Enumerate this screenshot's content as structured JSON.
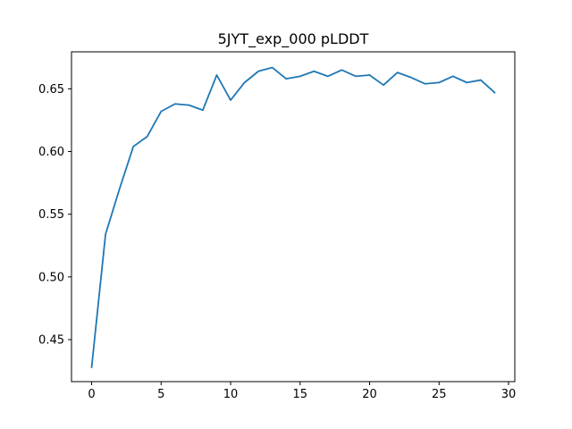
{
  "chart_data": {
    "type": "line",
    "title": "5JYT_exp_000 pLDDT",
    "xlabel": "",
    "ylabel": "",
    "xlim": [
      -1.45,
      30.45
    ],
    "ylim": [
      0.4165,
      0.6795
    ],
    "x_ticks": [
      0,
      5,
      10,
      15,
      20,
      25,
      30
    ],
    "x_tick_labels": [
      "0",
      "5",
      "10",
      "15",
      "20",
      "25",
      "30"
    ],
    "y_ticks": [
      0.45,
      0.5,
      0.55,
      0.6,
      0.65
    ],
    "y_tick_labels": [
      "0.45",
      "0.50",
      "0.55",
      "0.60",
      "0.65"
    ],
    "grid": false,
    "legend": "none",
    "series": [
      {
        "color": "#1f77b4",
        "x": [
          0,
          1,
          2,
          3,
          4,
          5,
          6,
          7,
          8,
          9,
          10,
          11,
          12,
          13,
          14,
          15,
          16,
          17,
          18,
          19,
          20,
          21,
          22,
          23,
          24,
          25,
          26,
          27,
          28,
          29
        ],
        "values": [
          0.428,
          0.534,
          0.57,
          0.604,
          0.612,
          0.632,
          0.638,
          0.637,
          0.633,
          0.661,
          0.641,
          0.655,
          0.664,
          0.667,
          0.658,
          0.66,
          0.664,
          0.66,
          0.665,
          0.66,
          0.661,
          0.653,
          0.663,
          0.659,
          0.654,
          0.655,
          0.66,
          0.655,
          0.657,
          0.647
        ]
      }
    ]
  }
}
